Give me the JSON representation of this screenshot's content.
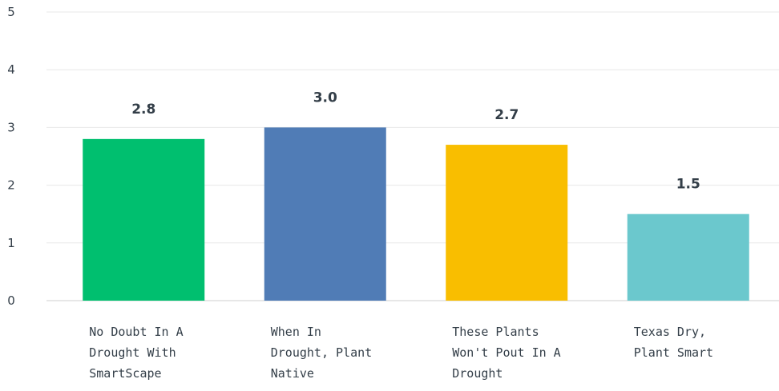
{
  "chart_data": {
    "type": "bar",
    "categories": [
      "No Doubt In A Drought With SmartScape",
      "When In Drought, Plant Native",
      "These Plants Won't Pout In A Drought",
      "Texas Dry, Plant Smart"
    ],
    "category_lines": [
      [
        "No Doubt In A",
        "Drought With",
        "SmartScape"
      ],
      [
        "When In",
        "Drought, Plant",
        "Native"
      ],
      [
        "These Plants",
        "Won't Pout In A",
        "Drought"
      ],
      [
        "Texas Dry,",
        "Plant Smart"
      ]
    ],
    "values": [
      2.8,
      3.0,
      2.7,
      1.5
    ],
    "value_labels": [
      "2.8",
      "3.0",
      "2.7",
      "1.5"
    ],
    "colors": [
      "#00bf6f",
      "#507cb6",
      "#f9be00",
      "#6bc8cd"
    ],
    "ylim": [
      0,
      5
    ],
    "yticks": [
      0,
      1,
      2,
      3,
      4,
      5
    ],
    "title": "",
    "xlabel": "",
    "ylabel": "",
    "grid": true,
    "legend": "none"
  }
}
